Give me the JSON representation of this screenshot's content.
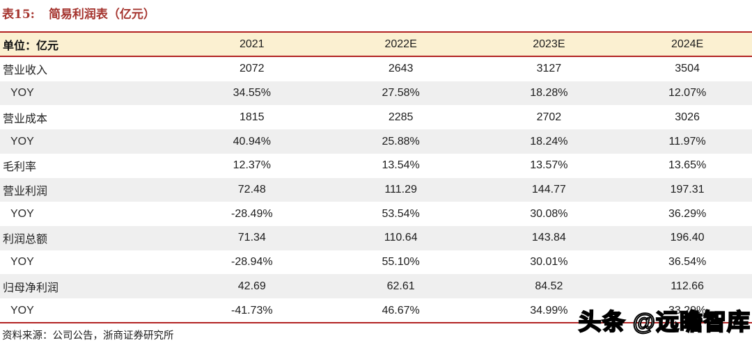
{
  "title": {
    "prefix": "表15:",
    "text": "简易利润表（亿元）"
  },
  "table": {
    "unit_label": "单位：亿元",
    "columns": [
      "2021",
      "2022E",
      "2023E",
      "2024E"
    ],
    "rows": [
      {
        "label": "营业收入",
        "values": [
          "2072",
          "2643",
          "3127",
          "3504"
        ],
        "shaded": false
      },
      {
        "label": "YOY",
        "values": [
          "34.55%",
          "27.58%",
          "18.28%",
          "12.07%"
        ],
        "shaded": true
      },
      {
        "label": "营业成本",
        "values": [
          "1815",
          "2285",
          "2702",
          "3026"
        ],
        "shaded": false
      },
      {
        "label": "YOY",
        "values": [
          "40.94%",
          "25.88%",
          "18.24%",
          "11.97%"
        ],
        "shaded": true
      },
      {
        "label": "毛利率",
        "values": [
          "12.37%",
          "13.54%",
          "13.57%",
          "13.65%"
        ],
        "shaded": false
      },
      {
        "label": "营业利润",
        "values": [
          "72.48",
          "111.29",
          "144.77",
          "197.31"
        ],
        "shaded": true
      },
      {
        "label": "YOY",
        "values": [
          "-28.49%",
          "53.54%",
          "30.08%",
          "36.29%"
        ],
        "shaded": false
      },
      {
        "label": "利润总额",
        "values": [
          "71.34",
          "110.64",
          "143.84",
          "196.40"
        ],
        "shaded": true
      },
      {
        "label": "YOY",
        "values": [
          "-28.94%",
          "55.10%",
          "30.01%",
          "36.54%"
        ],
        "shaded": false
      },
      {
        "label": "归母净利润",
        "values": [
          "42.69",
          "62.61",
          "84.52",
          "112.66"
        ],
        "shaded": true
      },
      {
        "label": "YOY",
        "values": [
          "-41.73%",
          "46.67%",
          "34.99%",
          "33.29%"
        ],
        "shaded": false
      }
    ]
  },
  "footer": {
    "source": "资料来源：公司公告，浙商证券研究所"
  },
  "watermark": {
    "text": "头条 @远瞻智库"
  },
  "colors": {
    "rule_red": "#b22222",
    "title_red": "#a5342e",
    "header_bg": "#fbf0d1",
    "stripe_bg": "#efefef"
  }
}
